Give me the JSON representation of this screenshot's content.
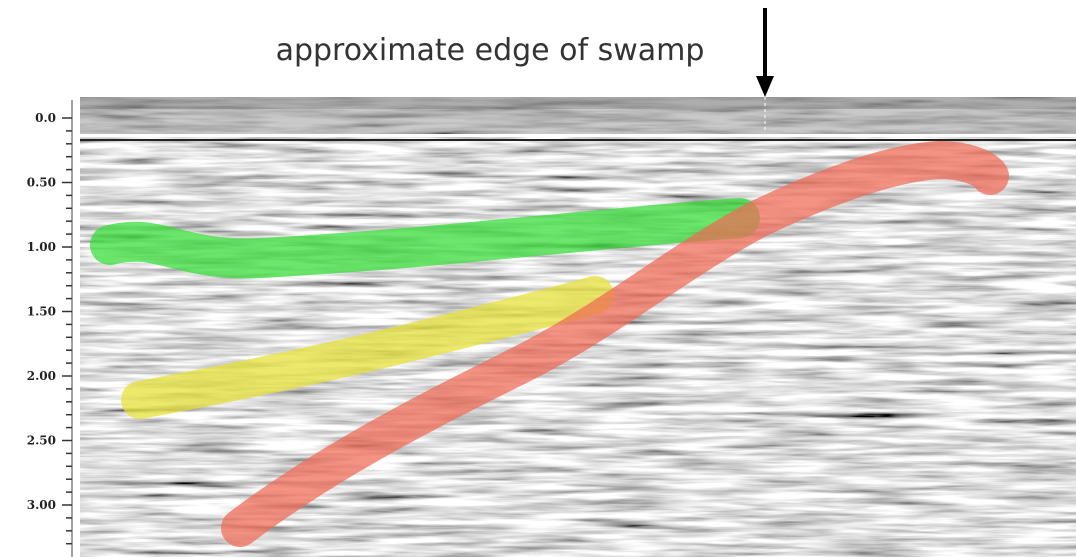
{
  "annotation": "approximate edge of swamp",
  "axis": {
    "ticks": [
      "0.0",
      "0.50",
      "1.00",
      "1.50",
      "2.00",
      "2.50",
      "3.00"
    ]
  }
}
